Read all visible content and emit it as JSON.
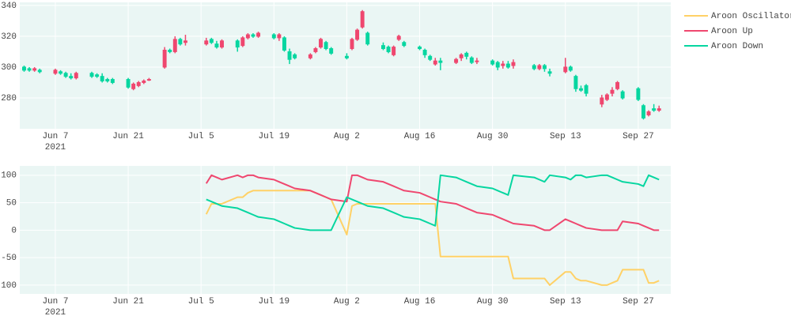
{
  "chart_data": [
    {
      "type": "candlestick",
      "x": [
        "2021-06-01",
        "2021-06-02",
        "2021-06-03",
        "2021-06-04",
        "2021-06-07",
        "2021-06-08",
        "2021-06-09",
        "2021-06-10",
        "2021-06-11",
        "2021-06-14",
        "2021-06-15",
        "2021-06-16",
        "2021-06-17",
        "2021-06-18",
        "2021-06-21",
        "2021-06-22",
        "2021-06-23",
        "2021-06-24",
        "2021-06-25",
        "2021-06-28",
        "2021-06-29",
        "2021-06-30",
        "2021-07-01",
        "2021-07-02",
        "2021-07-06",
        "2021-07-07",
        "2021-07-08",
        "2021-07-09",
        "2021-07-12",
        "2021-07-13",
        "2021-07-14",
        "2021-07-15",
        "2021-07-16",
        "2021-07-19",
        "2021-07-20",
        "2021-07-21",
        "2021-07-22",
        "2021-07-23",
        "2021-07-26",
        "2021-07-27",
        "2021-07-28",
        "2021-07-29",
        "2021-07-30",
        "2021-08-02",
        "2021-08-03",
        "2021-08-04",
        "2021-08-05",
        "2021-08-06",
        "2021-08-09",
        "2021-08-10",
        "2021-08-11",
        "2021-08-12",
        "2021-08-13",
        "2021-08-16",
        "2021-08-17",
        "2021-08-18",
        "2021-08-19",
        "2021-08-20",
        "2021-08-23",
        "2021-08-24",
        "2021-08-25",
        "2021-08-26",
        "2021-08-27",
        "2021-08-30",
        "2021-08-31",
        "2021-09-01",
        "2021-09-02",
        "2021-09-03",
        "2021-09-07",
        "2021-09-08",
        "2021-09-09",
        "2021-09-10",
        "2021-09-13",
        "2021-09-14",
        "2021-09-15",
        "2021-09-16",
        "2021-09-17",
        "2021-09-20",
        "2021-09-21",
        "2021-09-22",
        "2021-09-23",
        "2021-09-24",
        "2021-09-27",
        "2021-09-28",
        "2021-09-29",
        "2021-09-30",
        "2021-10-01"
      ],
      "open": [
        300,
        299,
        298,
        298,
        296,
        297,
        296,
        294,
        293,
        296,
        295,
        294,
        292,
        292,
        292,
        286,
        288,
        290,
        292,
        300,
        311,
        310,
        318,
        316,
        315,
        318,
        315,
        313,
        317,
        314,
        319,
        321,
        320,
        321,
        319,
        319,
        310,
        308,
        306,
        310,
        313,
        316,
        312,
        307,
        312,
        318,
        326,
        322,
        314,
        313,
        308,
        318,
        316,
        313,
        311,
        307,
        302,
        304,
        303,
        306,
        309,
        306,
        304,
        304,
        303,
        301,
        302,
        301,
        301,
        299,
        301,
        297,
        297,
        300,
        294,
        286,
        288,
        276,
        279,
        283,
        286,
        284,
        286,
        275,
        269,
        273,
        272
      ],
      "high": [
        301,
        300,
        300,
        299,
        299,
        298,
        297,
        296,
        297,
        297,
        296,
        296,
        293,
        293,
        293,
        290,
        291,
        292,
        293,
        313,
        312,
        320,
        319,
        321,
        319,
        319,
        317,
        318,
        318,
        320,
        322,
        322,
        323,
        322,
        322,
        320,
        312,
        309,
        309,
        313,
        319,
        317,
        313,
        309,
        319,
        325,
        337,
        323,
        316,
        314,
        314,
        321,
        317,
        314,
        312,
        308,
        306,
        306,
        306,
        309,
        310,
        307,
        306,
        305,
        304,
        304,
        304,
        305,
        302,
        302,
        302,
        299,
        306,
        301,
        295,
        288,
        289,
        282,
        283,
        287,
        291,
        285,
        287,
        276,
        272,
        276,
        275
      ],
      "low": [
        297,
        297,
        297,
        296,
        295,
        295,
        293,
        292,
        292,
        293,
        293,
        290,
        290,
        289,
        286,
        285,
        287,
        289,
        291,
        299,
        309,
        309,
        314,
        314,
        314,
        315,
        312,
        312,
        310,
        313,
        318,
        319,
        319,
        318,
        317,
        310,
        302,
        305,
        305,
        309,
        312,
        311,
        308,
        305,
        311,
        317,
        325,
        314,
        311,
        309,
        307,
        317,
        313,
        311,
        306,
        304,
        301,
        298,
        302,
        304,
        305,
        302,
        302,
        301,
        298,
        299,
        299,
        299,
        298,
        298,
        297,
        294,
        296,
        297,
        284,
        284,
        281,
        274,
        278,
        281,
        285,
        279,
        278,
        266,
        268,
        271,
        271
      ],
      "close": [
        298,
        298,
        299,
        297,
        298,
        296,
        294,
        293,
        296,
        294,
        294,
        291,
        291,
        290,
        287,
        289,
        290,
        291,
        292,
        311,
        310,
        318,
        315,
        317,
        317,
        316,
        313,
        317,
        313,
        319,
        321,
        320,
        322,
        319,
        321,
        311,
        305,
        306,
        308,
        312,
        318,
        312,
        309,
        306,
        318,
        324,
        336,
        315,
        312,
        310,
        313,
        320,
        314,
        312,
        308,
        305,
        304,
        303,
        305,
        308,
        307,
        303,
        304,
        302,
        300,
        302,
        300,
        303,
        299,
        301,
        299,
        296,
        300,
        298,
        286,
        285,
        283,
        280,
        282,
        285,
        290,
        280,
        279,
        267,
        271,
        272,
        273
      ],
      "increasing_color": "#ef476f",
      "decreasing_color": "#06d6a0",
      "xlim": [
        "2021-05-31T04:00",
        "2021-10-03T06:00"
      ],
      "xticks": [
        {
          "value": "2021-06-07",
          "label": "Jun 7"
        },
        {
          "value": "2021-06-21",
          "label": "Jun 21"
        },
        {
          "value": "2021-07-05",
          "label": "Jul 5"
        },
        {
          "value": "2021-07-19",
          "label": "Jul 19"
        },
        {
          "value": "2021-08-02",
          "label": "Aug 2"
        },
        {
          "value": "2021-08-16",
          "label": "Aug 16"
        },
        {
          "value": "2021-08-30",
          "label": "Aug 30"
        },
        {
          "value": "2021-09-13",
          "label": "Sep 13"
        },
        {
          "value": "2021-09-27",
          "label": "Sep 27"
        }
      ],
      "x_year_label": "2021",
      "ylim": [
        260,
        342
      ],
      "yticks": [
        280,
        300,
        320,
        340
      ],
      "grid": true
    },
    {
      "type": "line",
      "x": [
        "2021-06-01",
        "2021-06-02",
        "2021-06-03",
        "2021-06-04",
        "2021-06-07",
        "2021-06-08",
        "2021-06-09",
        "2021-06-10",
        "2021-06-11",
        "2021-06-14",
        "2021-06-15",
        "2021-06-16",
        "2021-06-17",
        "2021-06-18",
        "2021-06-21",
        "2021-06-22",
        "2021-06-23",
        "2021-06-24",
        "2021-06-25",
        "2021-06-28",
        "2021-06-29",
        "2021-06-30",
        "2021-07-01",
        "2021-07-02",
        "2021-07-06",
        "2021-07-07",
        "2021-07-08",
        "2021-07-09",
        "2021-07-12",
        "2021-07-13",
        "2021-07-14",
        "2021-07-15",
        "2021-07-16",
        "2021-07-19",
        "2021-07-20",
        "2021-07-21",
        "2021-07-22",
        "2021-07-23",
        "2021-07-26",
        "2021-07-27",
        "2021-07-28",
        "2021-07-29",
        "2021-07-30",
        "2021-08-02",
        "2021-08-03",
        "2021-08-04",
        "2021-08-05",
        "2021-08-06",
        "2021-08-09",
        "2021-08-10",
        "2021-08-11",
        "2021-08-12",
        "2021-08-13",
        "2021-08-16",
        "2021-08-17",
        "2021-08-18",
        "2021-08-19",
        "2021-08-20",
        "2021-08-23",
        "2021-08-24",
        "2021-08-25",
        "2021-08-26",
        "2021-08-27",
        "2021-08-30",
        "2021-08-31",
        "2021-09-01",
        "2021-09-02",
        "2021-09-03",
        "2021-09-07",
        "2021-09-08",
        "2021-09-09",
        "2021-09-10",
        "2021-09-13",
        "2021-09-14",
        "2021-09-15",
        "2021-09-16",
        "2021-09-17",
        "2021-09-20",
        "2021-09-21",
        "2021-09-22",
        "2021-09-23",
        "2021-09-24",
        "2021-09-27",
        "2021-09-28",
        "2021-09-29",
        "2021-09-30",
        "2021-10-01"
      ],
      "series": [
        {
          "name": "Aroon Oscillator",
          "color": "#ffd166",
          "values": [
            null,
            null,
            null,
            null,
            null,
            null,
            null,
            null,
            null,
            null,
            null,
            null,
            null,
            null,
            null,
            null,
            null,
            null,
            null,
            null,
            null,
            null,
            null,
            null,
            29,
            48,
            48,
            48,
            60,
            60,
            68,
            72,
            72,
            72,
            72,
            72,
            72,
            72,
            72,
            68,
            64,
            60,
            56,
            -8,
            44,
            48,
            48,
            48,
            48,
            48,
            48,
            48,
            48,
            48,
            48,
            48,
            48,
            -48,
            -48,
            -48,
            -48,
            -48,
            -48,
            -48,
            -48,
            -48,
            -48,
            -88,
            -88,
            -88,
            -88,
            -100,
            -76,
            -76,
            -88,
            -92,
            -92,
            -100,
            -100,
            -96,
            -92,
            -72,
            -72,
            -72,
            -96,
            -96,
            -92
          ]
        },
        {
          "name": "Aroon Up",
          "color": "#ef476f",
          "values": [
            null,
            null,
            null,
            null,
            null,
            null,
            null,
            null,
            null,
            null,
            null,
            null,
            null,
            null,
            null,
            null,
            null,
            null,
            null,
            null,
            null,
            null,
            null,
            null,
            85,
            100,
            96,
            92,
            100,
            96,
            100,
            100,
            96,
            92,
            88,
            84,
            80,
            76,
            72,
            68,
            64,
            60,
            56,
            52,
            100,
            100,
            96,
            92,
            88,
            84,
            80,
            76,
            72,
            68,
            64,
            60,
            56,
            52,
            48,
            44,
            40,
            36,
            32,
            28,
            24,
            20,
            16,
            12,
            8,
            4,
            0,
            0,
            20,
            16,
            12,
            8,
            4,
            0,
            0,
            0,
            0,
            16,
            12,
            8,
            4,
            0,
            0
          ]
        },
        {
          "name": "Aroon Down",
          "color": "#06d6a0",
          "values": [
            null,
            null,
            null,
            null,
            null,
            null,
            null,
            null,
            null,
            null,
            null,
            null,
            null,
            null,
            null,
            null,
            null,
            null,
            null,
            null,
            null,
            null,
            null,
            null,
            56,
            52,
            48,
            44,
            40,
            36,
            32,
            28,
            24,
            20,
            16,
            12,
            8,
            4,
            0,
            0,
            0,
            0,
            0,
            60,
            56,
            52,
            48,
            44,
            40,
            36,
            32,
            28,
            24,
            20,
            16,
            12,
            8,
            100,
            96,
            92,
            88,
            84,
            80,
            76,
            72,
            68,
            64,
            100,
            96,
            92,
            88,
            100,
            96,
            92,
            100,
            100,
            96,
            100,
            100,
            96,
            92,
            88,
            84,
            80,
            100,
            96,
            92
          ]
        }
      ],
      "legend": "right",
      "xlim": [
        "2021-05-31T04:00",
        "2021-10-03T06:00"
      ],
      "xticks": [
        {
          "value": "2021-06-07",
          "label": "Jun 7"
        },
        {
          "value": "2021-06-21",
          "label": "Jun 21"
        },
        {
          "value": "2021-07-05",
          "label": "Jul 5"
        },
        {
          "value": "2021-07-19",
          "label": "Jul 19"
        },
        {
          "value": "2021-08-02",
          "label": "Aug 2"
        },
        {
          "value": "2021-08-16",
          "label": "Aug 16"
        },
        {
          "value": "2021-08-30",
          "label": "Aug 30"
        },
        {
          "value": "2021-09-13",
          "label": "Sep 13"
        },
        {
          "value": "2021-09-27",
          "label": "Sep 27"
        }
      ],
      "x_year_label": "2021",
      "ylim": [
        -116,
        117
      ],
      "yticks": [
        -100,
        -50,
        0,
        50,
        100
      ],
      "grid": true
    }
  ]
}
